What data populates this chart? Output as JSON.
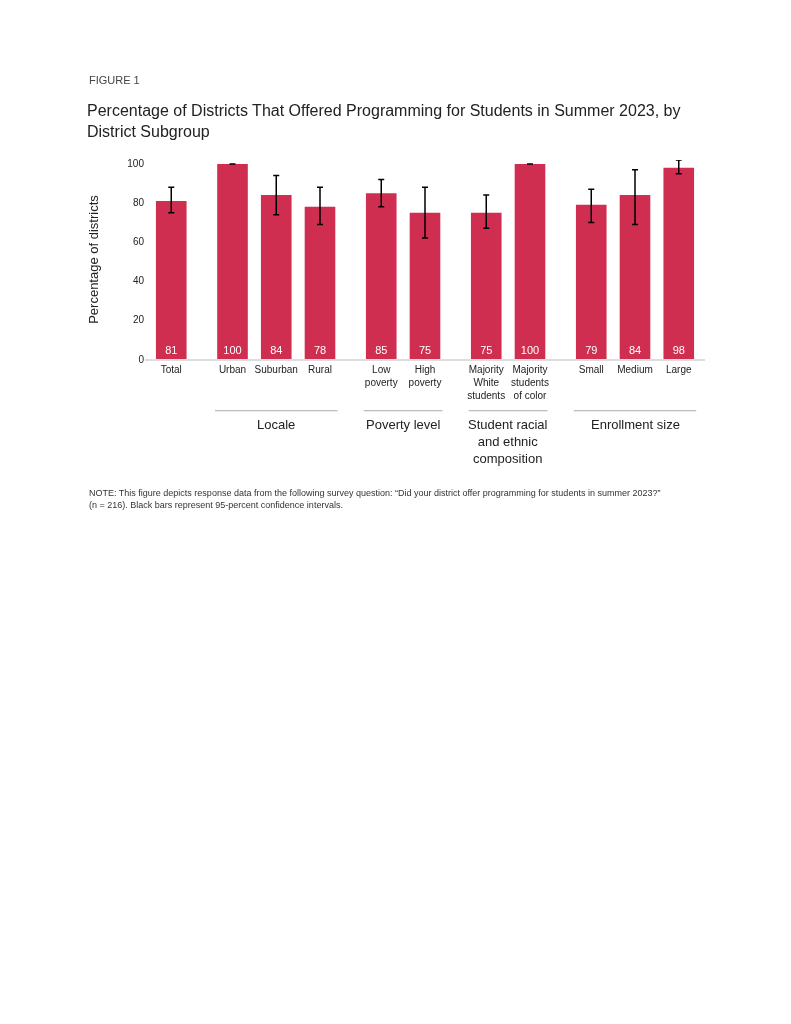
{
  "chart_data": {
    "type": "bar",
    "title": "Percentage of Districts That Offered Programming for Students in Summer 2023, by\nDistrict Subgroup",
    "ylabel": "Percentage of districts",
    "categories": [
      "Total",
      "Urban",
      "Suburban",
      "Rural",
      "Low\npoverty",
      "High\npoverty",
      "Majority\nWhite\nstudents",
      "Majority\nstudents\nof color",
      "Small",
      "Medium",
      "Large"
    ],
    "values": [
      81,
      100,
      84,
      78,
      85,
      75,
      75,
      100,
      79,
      84,
      98
    ],
    "errors": [
      [
        75,
        88
      ],
      [
        100,
        100
      ],
      [
        74,
        94
      ],
      [
        69,
        88
      ],
      [
        78,
        92
      ],
      [
        62,
        88
      ],
      [
        67,
        84
      ],
      [
        100,
        100
      ],
      [
        70,
        87
      ],
      [
        69,
        97
      ],
      [
        95,
        102
      ]
    ],
    "color": "#d02e50",
    "ylim": [
      0,
      102
    ],
    "yticks": [
      0,
      20,
      40,
      60,
      80,
      100
    ],
    "grid": false,
    "legend": false,
    "data_labels": true,
    "annotations": [
      "FIGURE 1",
      "Locale",
      "Poverty level",
      "Student racial\nand ethnic\ncomposition",
      "Enrollment size",
      "NOTE: This figure depicts response data from the following survey question: “Did your district offer programming for students in summer 2023?”\n(n = 216). Black bars represent 95-percent confidence intervals."
    ]
  }
}
